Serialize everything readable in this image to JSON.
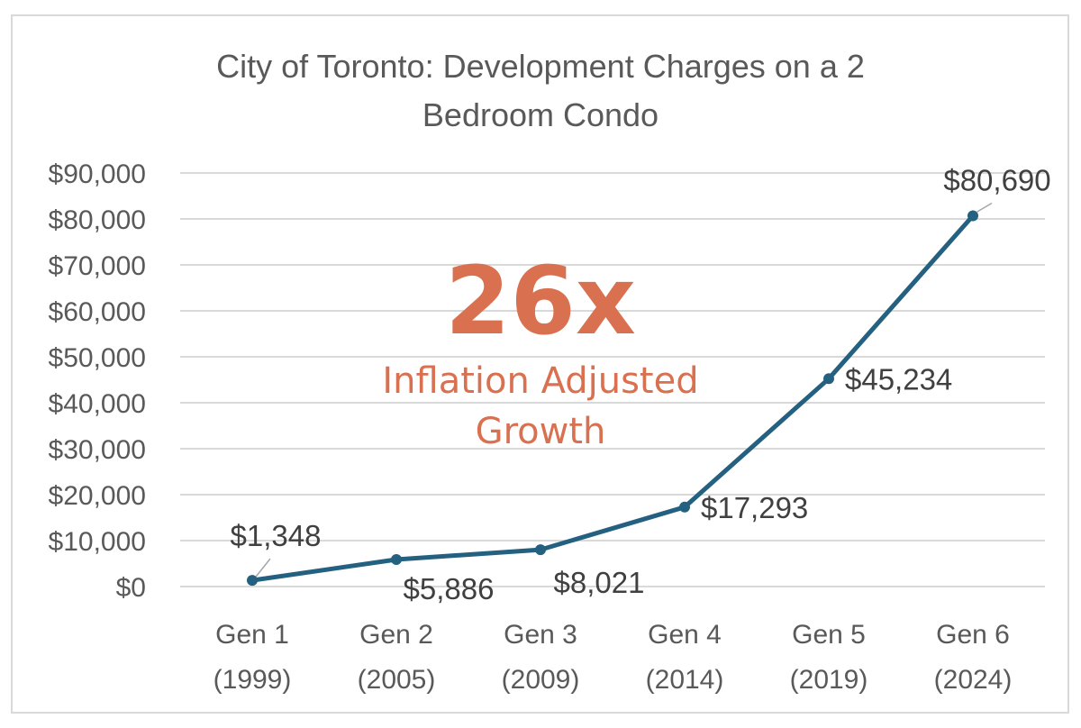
{
  "chart_data": {
    "type": "line",
    "title": [
      "City of Toronto: Development Charges on a 2",
      "Bedroom Condo"
    ],
    "categories": [
      [
        "Gen 1",
        "(1999)"
      ],
      [
        "Gen 2",
        "(2005)"
      ],
      [
        "Gen 3",
        "(2009)"
      ],
      [
        "Gen 4",
        "(2014)"
      ],
      [
        "Gen 5",
        "(2019)"
      ],
      [
        "Gen 6",
        "(2024)"
      ]
    ],
    "values": [
      1348,
      5886,
      8021,
      17293,
      45234,
      80690
    ],
    "data_labels": [
      "$1,348",
      "$5,886",
      "$8,021",
      "$17,293",
      "$45,234",
      "$80,690"
    ],
    "y_ticks": [
      "$0",
      "$10,000",
      "$20,000",
      "$30,000",
      "$40,000",
      "$50,000",
      "$60,000",
      "$70,000",
      "$80,000",
      "$90,000"
    ],
    "ylim": [
      0,
      90000
    ],
    "grid": true,
    "series_color": "#24607f",
    "annotation": {
      "headline": "26x",
      "subtitle": [
        "Inflation Adjusted",
        "Growth"
      ],
      "color": "#d9704f"
    }
  }
}
